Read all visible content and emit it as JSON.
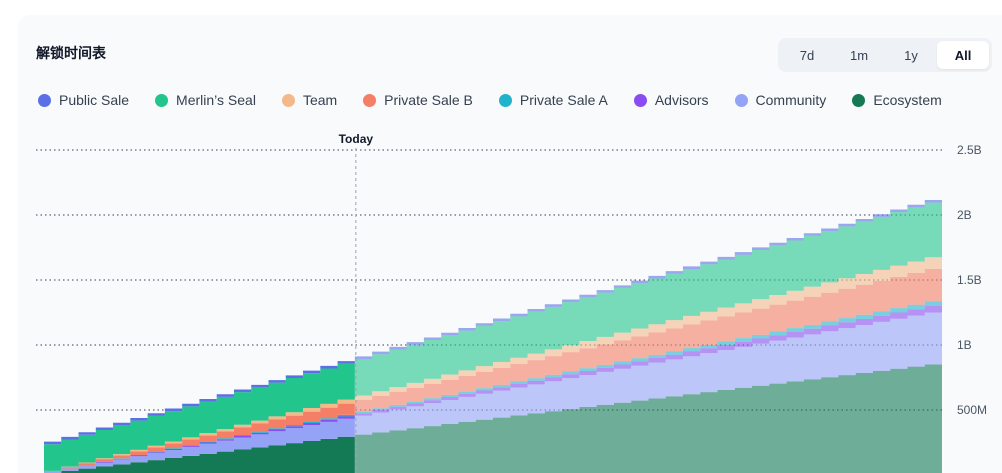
{
  "title": "解锁时间表",
  "range_buttons": [
    {
      "label": "7d",
      "active": false
    },
    {
      "label": "1m",
      "active": false
    },
    {
      "label": "1y",
      "active": false
    },
    {
      "label": "All",
      "active": true
    }
  ],
  "colors": {
    "public_sale": "#5b6fe6",
    "merlins_seal": "#22c58b",
    "team": "#f4b98a",
    "private_sale_b": "#f47f66",
    "private_sale_a": "#21b3cc",
    "advisors": "#8b4cf0",
    "community": "#94a3f5",
    "ecosystem": "#137a55"
  },
  "chart_data": {
    "type": "area",
    "stacked": true,
    "step": true,
    "y_axis_labels": [
      "2.5B",
      "2B",
      "1.5B",
      "1B",
      "500M"
    ],
    "y_ticks": [
      2500000000,
      2000000000,
      1500000000,
      1000000000,
      500000000
    ],
    "ylim": [
      0,
      2500000000
    ],
    "x_steps": 52,
    "today_label": "Today",
    "today_index": 18,
    "legend_position": "top",
    "series": [
      {
        "name": "Ecosystem",
        "key": "ecosystem",
        "start": 0,
        "end": 850000000
      },
      {
        "name": "Community",
        "key": "community",
        "start": 0,
        "end": 400000000
      },
      {
        "name": "Advisors",
        "key": "advisors",
        "start": 0,
        "end": 50000000
      },
      {
        "name": "Private Sale A",
        "key": "private_sale_a",
        "start": 0,
        "end": 35000000
      },
      {
        "name": "Private Sale B",
        "key": "private_sale_b",
        "start": 0,
        "end": 250000000
      },
      {
        "name": "Team",
        "key": "team",
        "start": 0,
        "end": 90000000
      },
      {
        "name": "Merlin’s Seal",
        "key": "merlins_seal",
        "start": 200000000,
        "end": 420000000
      },
      {
        "name": "Public Sale",
        "key": "public_sale",
        "start": 20000000,
        "end": 20000000
      }
    ],
    "legend": [
      {
        "name": "Public Sale",
        "key": "public_sale"
      },
      {
        "name": "Merlin’s Seal",
        "key": "merlins_seal"
      },
      {
        "name": "Team",
        "key": "team"
      },
      {
        "name": "Private Sale B",
        "key": "private_sale_b"
      },
      {
        "name": "Private Sale A",
        "key": "private_sale_a"
      },
      {
        "name": "Advisors",
        "key": "advisors"
      },
      {
        "name": "Community",
        "key": "community"
      },
      {
        "name": "Ecosystem",
        "key": "ecosystem"
      }
    ]
  }
}
